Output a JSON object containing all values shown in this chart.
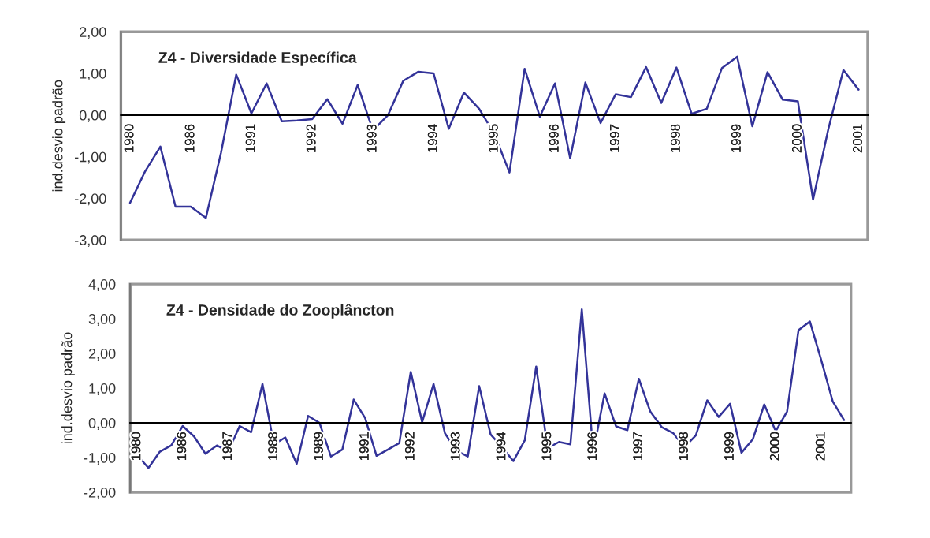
{
  "chart_data": [
    {
      "type": "line",
      "title": "Z4 - Diversidade Específica",
      "ylabel": "ind.desvio padrão",
      "categories": [
        "1980",
        null,
        null,
        null,
        "1986",
        null,
        null,
        null,
        "1991",
        null,
        null,
        null,
        "1992",
        null,
        null,
        null,
        "1993",
        null,
        null,
        null,
        "1994",
        null,
        null,
        null,
        "1995",
        null,
        null,
        null,
        "1996",
        null,
        null,
        null,
        "1997",
        null,
        null,
        null,
        "1998",
        null,
        null,
        null,
        "1999",
        null,
        null,
        null,
        "2000",
        null,
        null,
        null,
        "2001"
      ],
      "series": [
        {
          "color": "#333399",
          "values": [
            -2.11,
            -1.35,
            -0.76,
            -2.2,
            -2.2,
            -2.47,
            -0.9,
            0.97,
            0.04,
            0.76,
            -0.15,
            -0.13,
            -0.1,
            0.38,
            -0.21,
            0.72,
            -0.37,
            0.0,
            0.82,
            1.04,
            1.0,
            -0.33,
            0.54,
            0.15,
            -0.45,
            -1.38,
            1.11,
            -0.04,
            0.76,
            -1.04,
            0.78,
            -0.19,
            0.5,
            0.43,
            1.15,
            0.29,
            1.14,
            0.03,
            0.15,
            1.13,
            1.4,
            -0.27,
            1.03,
            0.37,
            0.33,
            -2.03,
            -0.35,
            1.08,
            0.61
          ]
        }
      ],
      "ylim": [
        -3,
        2
      ],
      "yticks": [
        {
          "value": -3,
          "label": "-3,00"
        },
        {
          "value": -2,
          "label": "-2,00"
        },
        {
          "value": -1,
          "label": "-1,00"
        },
        {
          "value": 0,
          "label": "0,00"
        },
        {
          "value": 1,
          "label": "1,00"
        },
        {
          "value": 2,
          "label": "2,00"
        }
      ],
      "grid": false,
      "legend": false,
      "marker": "none",
      "line_style": "solid"
    },
    {
      "type": "line",
      "title": "Z4 - Densidade do Zooplâncton",
      "ylabel": "ind.desvio padrão",
      "categories": [
        "1980",
        null,
        null,
        null,
        "1986",
        null,
        null,
        null,
        "1987",
        null,
        null,
        null,
        "1988",
        null,
        null,
        null,
        "1989",
        null,
        null,
        null,
        "1991",
        null,
        null,
        null,
        "1992",
        null,
        null,
        null,
        "1993",
        null,
        null,
        null,
        "1994",
        null,
        null,
        null,
        "1995",
        null,
        null,
        null,
        "1996",
        null,
        null,
        null,
        "1997",
        null,
        null,
        null,
        "1998",
        null,
        null,
        null,
        "1999",
        null,
        null,
        null,
        "2000",
        null,
        null,
        null,
        "2001",
        null,
        null
      ],
      "series": [
        {
          "color": "#333399",
          "values": [
            -0.92,
            -1.3,
            -0.83,
            -0.65,
            -0.09,
            -0.39,
            -0.89,
            -0.65,
            -0.82,
            -0.09,
            -0.27,
            1.12,
            -0.62,
            -0.42,
            -1.18,
            0.2,
            0.0,
            -0.97,
            -0.77,
            0.67,
            0.14,
            -0.95,
            -0.77,
            -0.58,
            1.47,
            0.02,
            1.12,
            -0.3,
            -0.8,
            -0.97,
            1.06,
            -0.33,
            -0.7,
            -1.1,
            -0.5,
            1.62,
            -0.73,
            -0.55,
            -0.62,
            3.27,
            -0.85,
            0.85,
            -0.1,
            -0.21,
            1.27,
            0.33,
            -0.12,
            -0.29,
            -0.7,
            -0.36,
            0.65,
            0.17,
            0.55,
            -0.86,
            -0.47,
            0.53,
            -0.24,
            0.33,
            2.67,
            2.92,
            1.8,
            0.62,
            0.08
          ]
        }
      ],
      "ylim": [
        -2,
        4
      ],
      "yticks": [
        {
          "value": -2,
          "label": "-2,00"
        },
        {
          "value": -1,
          "label": "-1,00"
        },
        {
          "value": 0,
          "label": "0,00"
        },
        {
          "value": 1,
          "label": "1,00"
        },
        {
          "value": 2,
          "label": "2,00"
        },
        {
          "value": 3,
          "label": "3,00"
        },
        {
          "value": 4,
          "label": "4,00"
        }
      ],
      "grid": false,
      "legend": false,
      "marker": "none",
      "line_style": "solid"
    }
  ]
}
